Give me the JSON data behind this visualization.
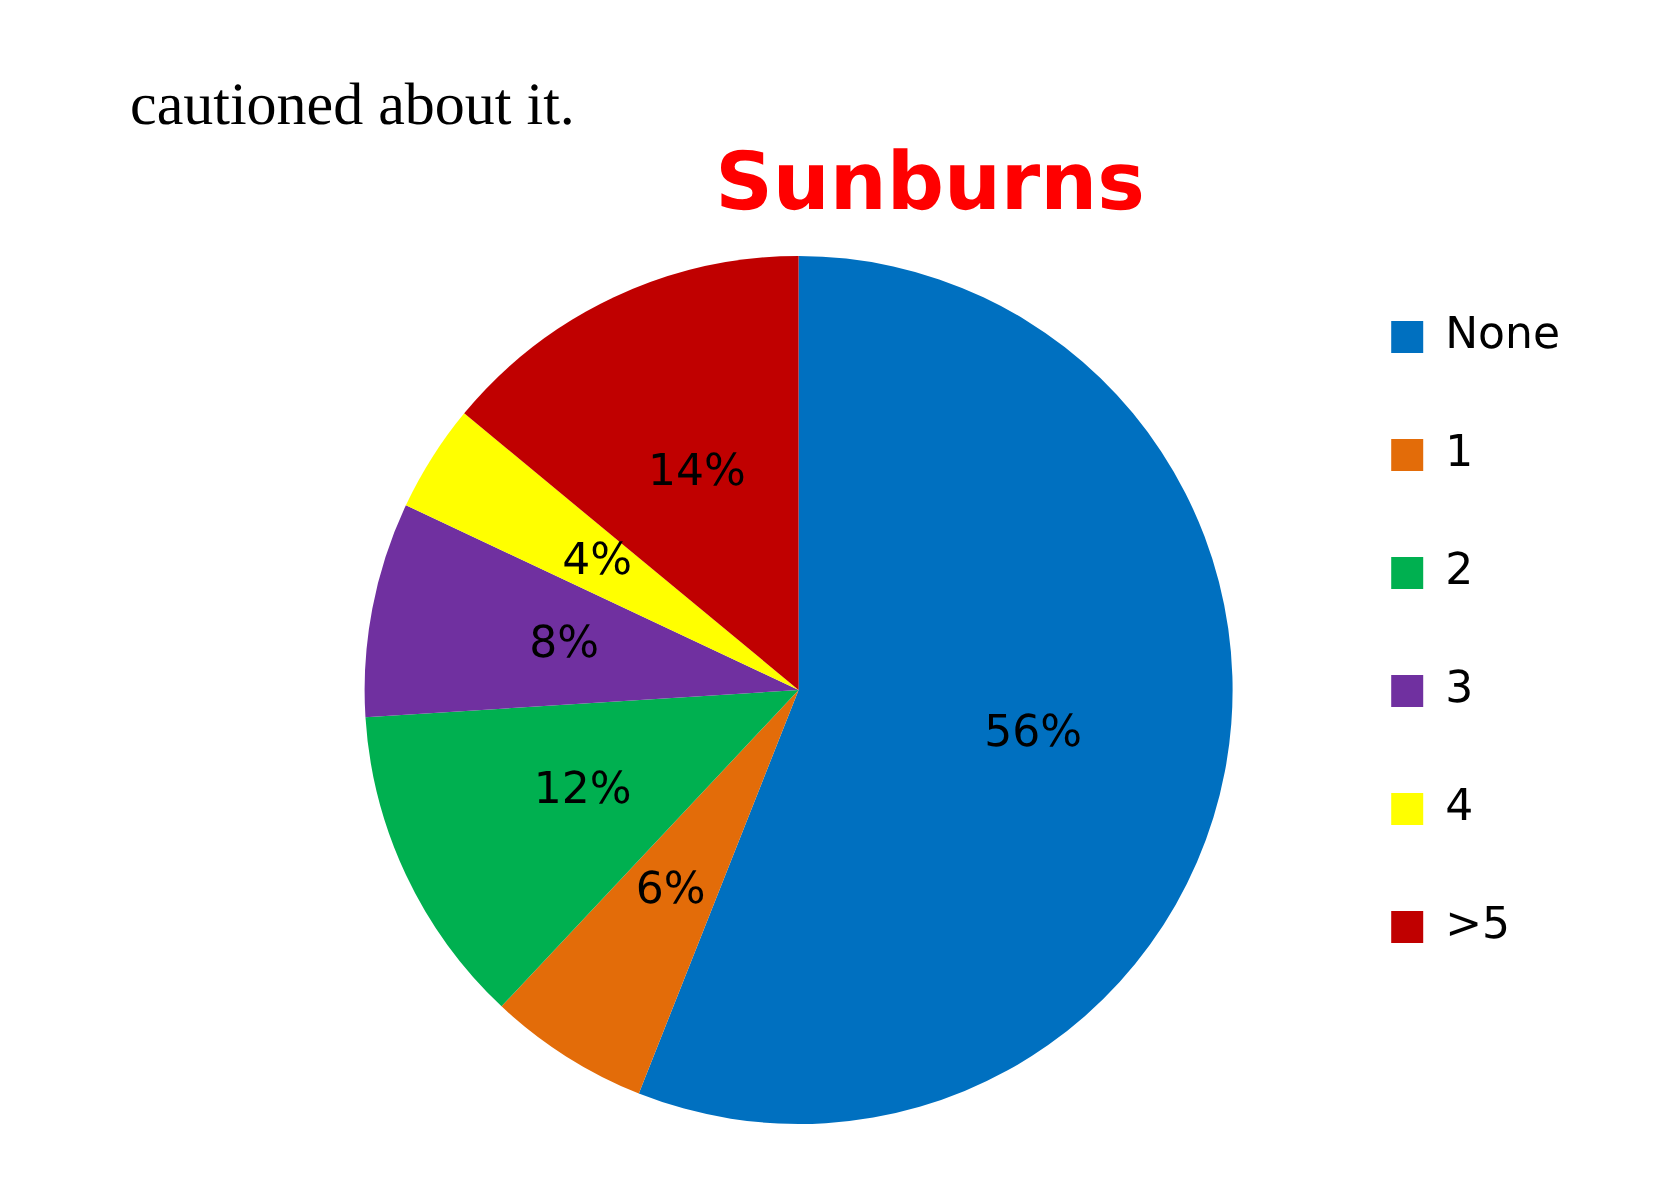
{
  "chart_data": {
    "type": "pie",
    "title": "Sunburns",
    "categories": [
      "None",
      "1",
      "2",
      "3",
      "4",
      ">5"
    ],
    "values": [
      56,
      6,
      12,
      8,
      4,
      14
    ],
    "colors": [
      "#0070c0",
      "#e36c09",
      "#00b050",
      "#7030a0",
      "#ffff00",
      "#c00000"
    ],
    "value_labels": [
      "56%",
      "6%",
      "12%",
      "8%",
      "4%",
      "14%"
    ],
    "legend": "right",
    "annotations": [
      "cautioned about it."
    ]
  }
}
